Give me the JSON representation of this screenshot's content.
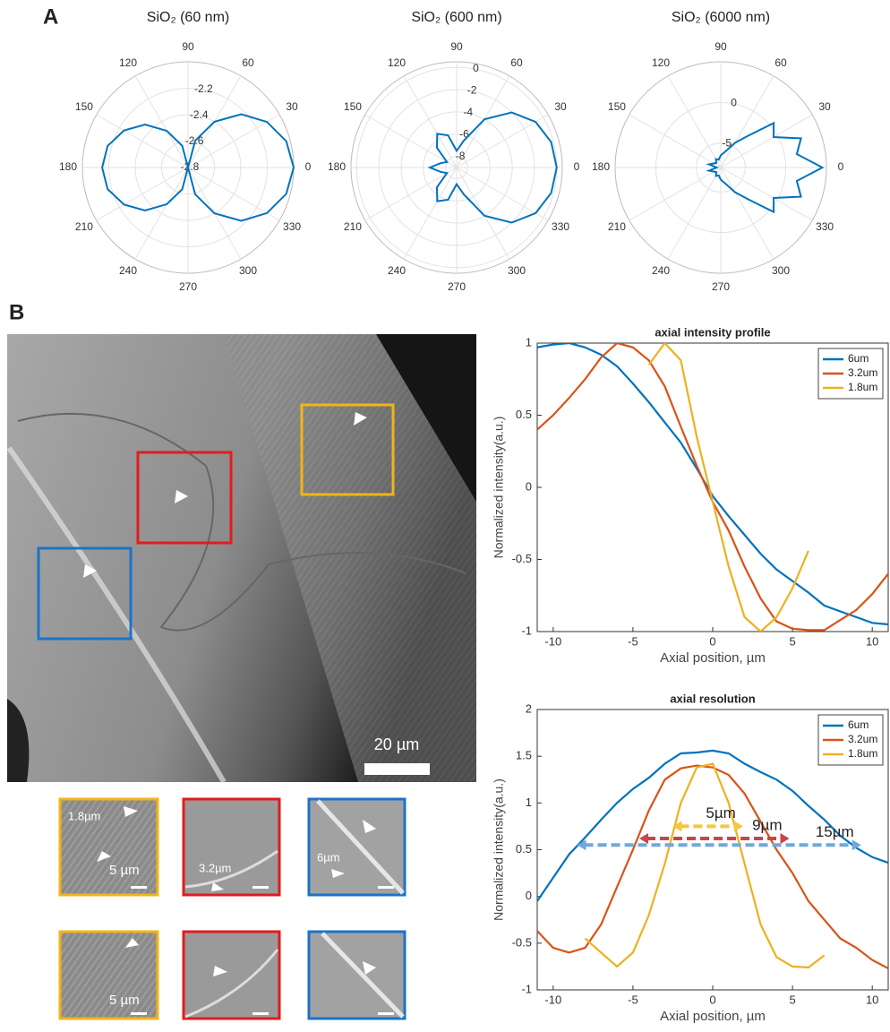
{
  "figure": {
    "panel_labels": [
      "A",
      "B"
    ],
    "scale_bar": "20 µm",
    "inset_labels": [
      "1.8µm",
      "5 µm",
      "3.2µm",
      "6µm",
      "5 µm"
    ]
  },
  "chart_data": [
    {
      "type": "polar",
      "title": "SiO₂ (60 nm)",
      "color": "#0072bd",
      "theta": [
        0,
        15,
        30,
        45,
        60,
        75,
        90,
        105,
        120,
        135,
        150,
        165,
        180,
        195,
        210,
        225,
        240,
        255,
        270,
        285,
        300,
        315,
        330,
        345
      ],
      "values": [
        -2.0,
        -2.03,
        -2.11,
        -2.23,
        -2.4,
        -2.59,
        -2.8,
        -2.63,
        -2.48,
        -2.34,
        -2.24,
        -2.17,
        -2.15,
        -2.17,
        -2.24,
        -2.34,
        -2.48,
        -2.63,
        -2.8,
        -2.59,
        -2.4,
        -2.23,
        -2.11,
        -2.03
      ],
      "rlim": [
        -2.8,
        -2.0
      ],
      "rticks": [
        -2.8,
        -2.6,
        -2.4,
        -2.2
      ],
      "thetaticks": [
        0,
        30,
        60,
        90,
        120,
        150,
        180,
        210,
        240,
        270,
        300,
        330
      ]
    },
    {
      "type": "polar",
      "title": "SiO₂ (600 nm)",
      "color": "#0072bd",
      "theta": [
        0,
        15,
        30,
        45,
        60,
        75,
        90,
        105,
        120,
        135,
        150,
        165,
        180,
        195,
        210,
        225,
        240,
        255,
        270,
        285,
        300,
        315,
        330,
        345
      ],
      "values": [
        0,
        -0.2,
        -0.8,
        -2,
        -4,
        -6.5,
        -7.5,
        -6,
        -5.5,
        -6.5,
        -8,
        -7.5,
        -6.6,
        -7.5,
        -8,
        -6.5,
        -5.5,
        -6,
        -7.5,
        -6.5,
        -4,
        -2,
        -0.8,
        -0.2
      ],
      "rlim": [
        -9,
        0.5
      ],
      "rticks": [
        -8,
        -6,
        -4,
        -2,
        0
      ],
      "thetaticks": [
        0,
        30,
        60,
        90,
        120,
        150,
        180,
        210,
        240,
        270,
        300,
        330
      ]
    },
    {
      "type": "polar",
      "title": "SiO₂ (6000 nm)",
      "color": "#0072bd",
      "theta": [
        0,
        10,
        20,
        30,
        40,
        50,
        60,
        75,
        90,
        105,
        120,
        135,
        150,
        165,
        180,
        195,
        210,
        225,
        240,
        255,
        270,
        285,
        300,
        310,
        320,
        330,
        340,
        350
      ],
      "values": [
        4.5,
        1.5,
        2.5,
        -0.5,
        0.5,
        -3,
        -4.5,
        -6,
        -6.5,
        -7,
        -6.8,
        -7.2,
        -7,
        -6.5,
        -7.5,
        -6.5,
        -7,
        -7.2,
        -6.8,
        -7,
        -6.5,
        -6,
        -4.5,
        -3,
        0.5,
        -0.5,
        2.5,
        1.5
      ],
      "rlim": [
        -8,
        5
      ],
      "rticks": [
        -5,
        0
      ],
      "thetaticks": [
        0,
        30,
        60,
        90,
        120,
        150,
        180,
        210,
        240,
        270,
        300,
        330
      ]
    },
    {
      "type": "line",
      "title": "axial intensity profile",
      "xlabel": "Axial position, µm",
      "ylabel": "Normalized intensity(a.u.)",
      "xlim": [
        -11,
        11
      ],
      "xticks": [
        -10,
        -5,
        0,
        5,
        10
      ],
      "ylim": [
        -1,
        1
      ],
      "yticks": [
        -1,
        -0.5,
        0,
        0.5,
        1
      ],
      "legend": "upper right",
      "series": [
        {
          "name": "6um",
          "color": "#0072bd",
          "x": [
            -11,
            -10,
            -9,
            -8,
            -7,
            -6,
            -5,
            -4,
            -3,
            -2,
            -1,
            0,
            1,
            2,
            3,
            4,
            5,
            6,
            7,
            8,
            9,
            10,
            11
          ],
          "values": [
            0.97,
            0.99,
            1.0,
            0.97,
            0.92,
            0.84,
            0.72,
            0.59,
            0.45,
            0.31,
            0.13,
            -0.06,
            -0.2,
            -0.33,
            -0.46,
            -0.57,
            -0.65,
            -0.73,
            -0.82,
            -0.86,
            -0.9,
            -0.94,
            -0.95
          ]
        },
        {
          "name": "3.2um",
          "color": "#d95319",
          "x": [
            -11,
            -10,
            -9,
            -8,
            -7,
            -6,
            -5,
            -4,
            -3,
            -2,
            -1,
            0,
            1,
            2,
            3,
            4,
            5,
            6,
            7,
            8,
            9,
            10,
            11
          ],
          "values": [
            0.4,
            0.5,
            0.62,
            0.75,
            0.9,
            1.0,
            0.97,
            0.88,
            0.7,
            0.42,
            0.15,
            -0.1,
            -0.3,
            -0.55,
            -0.77,
            -0.93,
            -0.98,
            -0.99,
            -0.99,
            -0.92,
            -0.85,
            -0.74,
            -0.6
          ]
        },
        {
          "name": "1.8um",
          "color": "#edb120",
          "x": [
            -4,
            -3,
            -2,
            -1,
            0,
            1,
            2,
            3,
            4,
            5,
            6
          ],
          "values": [
            0.85,
            1.0,
            0.88,
            0.35,
            -0.1,
            -0.55,
            -0.9,
            -1.0,
            -0.9,
            -0.7,
            -0.44
          ]
        }
      ]
    },
    {
      "type": "line",
      "title": "axial resolution",
      "xlabel": "Axial position, µm",
      "ylabel": "Normalized intensity(a.u.)",
      "xlim": [
        -11,
        11
      ],
      "xticks": [
        -10,
        -5,
        0,
        5,
        10
      ],
      "ylim": [
        -1,
        2
      ],
      "yticks": [
        -1,
        -0.5,
        0,
        0.5,
        1,
        1.5,
        2
      ],
      "legend": "upper right",
      "series": [
        {
          "name": "6um",
          "color": "#0072bd",
          "x": [
            -11,
            -10,
            -9,
            -8,
            -7,
            -6,
            -5,
            -4,
            -3,
            -2,
            -1,
            0,
            1,
            2,
            3,
            4,
            5,
            6,
            7,
            8,
            9,
            10,
            11
          ],
          "values": [
            -0.05,
            0.2,
            0.45,
            0.63,
            0.82,
            1.0,
            1.15,
            1.27,
            1.42,
            1.53,
            1.54,
            1.56,
            1.53,
            1.42,
            1.33,
            1.25,
            1.13,
            0.97,
            0.82,
            0.65,
            0.52,
            0.42,
            0.36
          ]
        },
        {
          "name": "3.2um",
          "color": "#d95319",
          "x": [
            -11,
            -10,
            -9,
            -8,
            -7,
            -6,
            -5,
            -4,
            -3,
            -2,
            -1,
            0,
            1,
            2,
            3,
            4,
            5,
            6,
            7,
            8,
            9,
            10,
            11
          ],
          "values": [
            -0.37,
            -0.55,
            -0.6,
            -0.55,
            -0.3,
            0.1,
            0.5,
            0.92,
            1.25,
            1.37,
            1.4,
            1.38,
            1.3,
            1.1,
            0.8,
            0.5,
            0.25,
            -0.05,
            -0.25,
            -0.45,
            -0.55,
            -0.68,
            -0.77
          ]
        },
        {
          "name": "1.8um",
          "color": "#edb120",
          "x": [
            -8,
            -7,
            -6,
            -5,
            -4,
            -3,
            -2,
            -1,
            0,
            1,
            2,
            3,
            4,
            5,
            6,
            7
          ],
          "values": [
            -0.45,
            -0.6,
            -0.75,
            -0.6,
            -0.2,
            0.35,
            1.0,
            1.38,
            1.42,
            1.0,
            0.35,
            -0.3,
            -0.65,
            -0.75,
            -0.76,
            -0.63
          ]
        }
      ],
      "annotations": [
        {
          "text": "5µm",
          "x": [
            -2.5,
            1.9
          ],
          "y": 0.75,
          "color": "#f5c73a"
        },
        {
          "text": "9µm",
          "x": [
            -4.6,
            4.8
          ],
          "y": 0.62,
          "color": "#c8454a"
        },
        {
          "text": "15µm",
          "x": [
            -8.5,
            9.3
          ],
          "y": 0.55,
          "color": "#6fa8dc"
        }
      ]
    }
  ]
}
